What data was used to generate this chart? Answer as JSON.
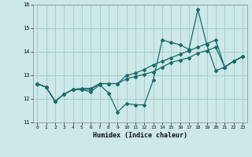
{
  "xlabel": "Humidex (Indice chaleur)",
  "background_color": "#cce8e8",
  "grid_color": "#aacccc",
  "line_color": "#1a6b6b",
  "xlim": [
    -0.5,
    23.5
  ],
  "ylim": [
    11,
    16
  ],
  "yticks": [
    11,
    12,
    13,
    14,
    15,
    16
  ],
  "xticks": [
    0,
    1,
    2,
    3,
    4,
    5,
    6,
    7,
    8,
    9,
    10,
    11,
    12,
    13,
    14,
    15,
    16,
    17,
    18,
    19,
    20,
    21,
    22,
    23
  ],
  "series1_x": [
    0,
    1,
    2,
    3,
    4,
    5,
    6,
    7,
    8,
    9,
    10,
    11,
    12,
    13,
    14,
    15,
    16,
    17,
    18,
    19,
    20,
    21,
    22,
    23
  ],
  "series1_y": [
    12.65,
    12.5,
    11.9,
    12.2,
    12.4,
    12.4,
    12.3,
    12.6,
    12.25,
    11.45,
    11.8,
    11.75,
    11.75,
    12.8,
    14.5,
    14.4,
    14.3,
    14.1,
    15.8,
    14.3,
    13.2,
    13.35,
    13.6,
    13.8
  ],
  "series2_x": [
    0,
    1,
    2,
    3,
    4,
    5,
    6,
    7,
    8,
    9,
    10,
    11,
    12,
    13,
    14,
    15,
    16,
    17,
    18,
    19,
    20,
    21,
    22,
    23
  ],
  "series2_y": [
    12.65,
    12.5,
    11.9,
    12.2,
    12.4,
    12.4,
    12.4,
    12.65,
    12.65,
    12.65,
    13.0,
    13.1,
    13.25,
    13.45,
    13.6,
    13.75,
    13.9,
    14.05,
    14.2,
    14.35,
    14.5,
    13.35,
    13.6,
    13.8
  ],
  "series3_x": [
    0,
    1,
    2,
    3,
    4,
    5,
    6,
    7,
    8,
    9,
    10,
    11,
    12,
    13,
    14,
    15,
    16,
    17,
    18,
    19,
    20,
    21,
    22,
    23
  ],
  "series3_y": [
    12.65,
    12.5,
    11.9,
    12.2,
    12.4,
    12.45,
    12.45,
    12.65,
    12.65,
    12.65,
    12.85,
    12.95,
    13.05,
    13.15,
    13.35,
    13.55,
    13.65,
    13.75,
    13.95,
    14.05,
    14.2,
    13.35,
    13.6,
    13.8
  ]
}
